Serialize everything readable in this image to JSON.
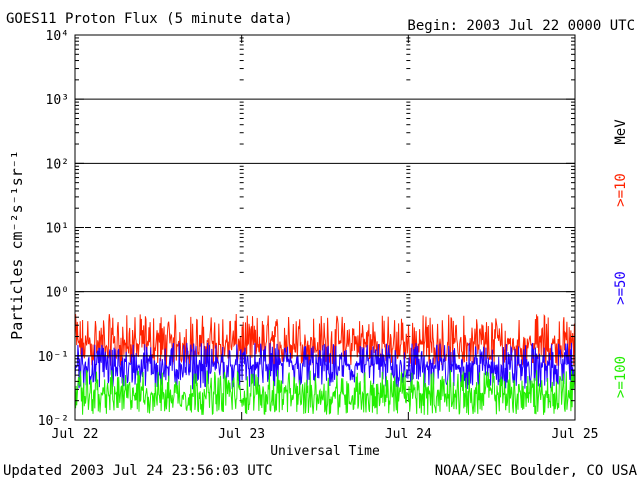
{
  "header": {
    "title": "GOES11 Proton Flux (5 minute data)",
    "begin": "Begin: 2003 Jul 22 0000 UTC"
  },
  "footer": {
    "updated": "Updated 2003 Jul 24 23:56:03 UTC",
    "credit": "NOAA/SEC Boulder, CO USA"
  },
  "colors": {
    "red": "#ff2200",
    "blue": "#2200ff",
    "green": "#22ee00",
    "axis": "#000000"
  },
  "chart_data": {
    "type": "line",
    "title": "GOES11 Proton Flux (5 minute data)",
    "xlabel": "Universal Time",
    "ylabel": "Particles cm⁻²s⁻¹sr⁻¹",
    "yscale": "log",
    "ylim": [
      0.01,
      10000
    ],
    "y_ticks": [
      "10⁻²",
      "10⁻¹",
      "10⁰",
      "10¹",
      "10²",
      "10³",
      "10⁴"
    ],
    "x_ticks": [
      "Jul 22",
      "Jul 23",
      "Jul 24",
      "Jul 25"
    ],
    "grid": "horizontal lines at each decade; dashed at 10¹",
    "threshold_line": 0.1,
    "series_labels_right": [
      {
        "label": "MeV",
        "color": "#000000"
      },
      {
        "label": ">=10",
        "color": "#ff2200"
      },
      {
        "label": ">=50",
        "color": "#2200ff"
      },
      {
        "label": ">=100",
        "color": "#22ee00"
      }
    ],
    "series": [
      {
        "name": ">=10 MeV",
        "color": "#ff2200",
        "typical": 0.15,
        "range": [
          0.07,
          0.45
        ]
      },
      {
        "name": ">=50 MeV",
        "color": "#2200ff",
        "typical": 0.07,
        "range": [
          0.03,
          0.16
        ]
      },
      {
        "name": ">=100 MeV",
        "color": "#22ee00",
        "typical": 0.025,
        "range": [
          0.012,
          0.06
        ]
      }
    ]
  }
}
